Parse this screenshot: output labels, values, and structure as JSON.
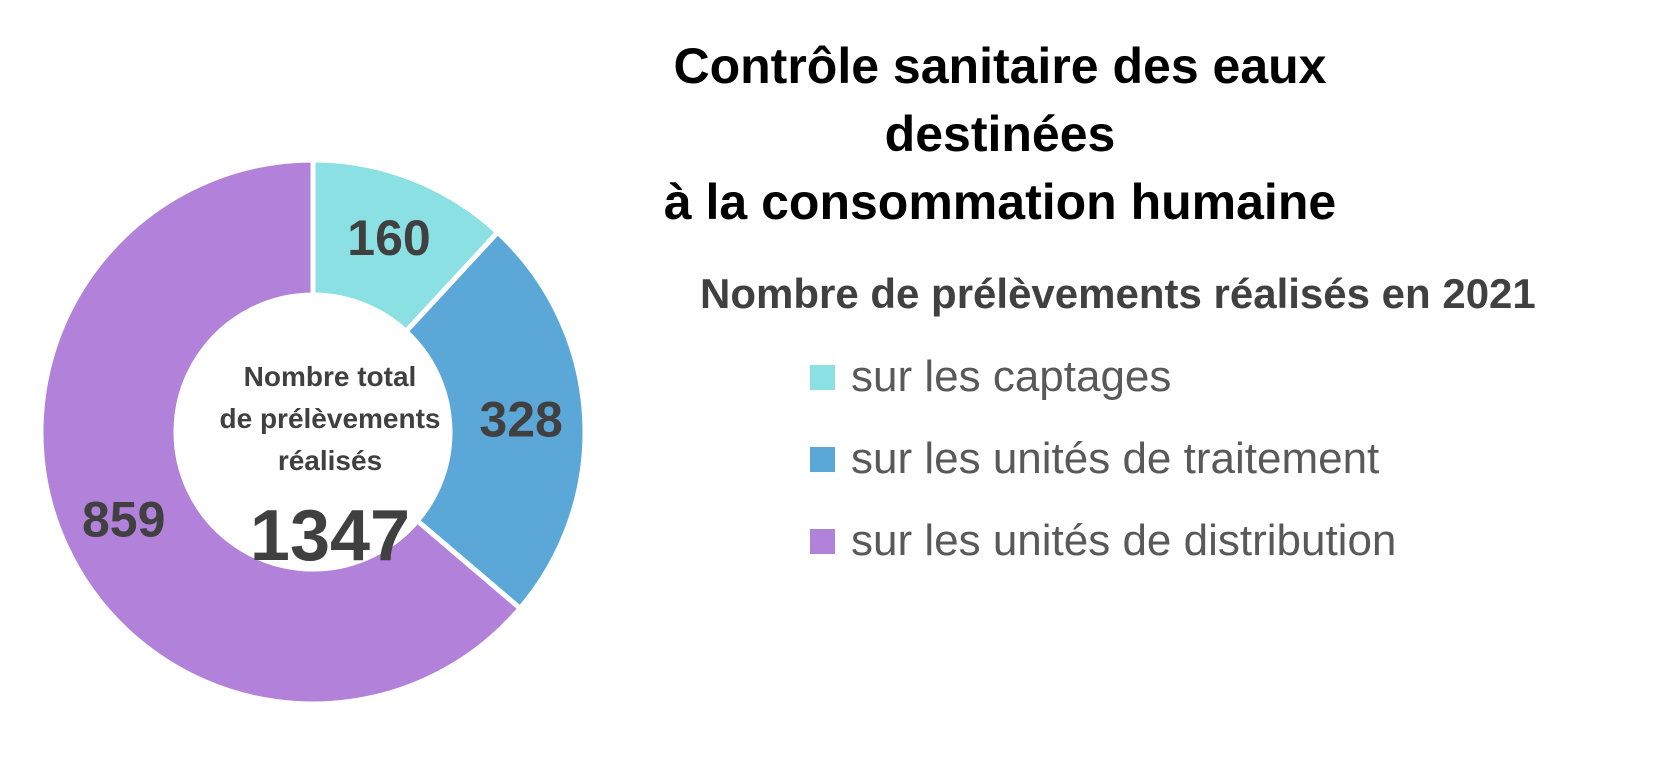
{
  "chart_data": {
    "type": "pie",
    "title_lines": [
      "Contrôle sanitaire des eaux destinées",
      "à la consommation humaine"
    ],
    "legend_title": "Nombre de prélèvements réalisés en 2021",
    "legend_placement": "right",
    "center": {
      "lines": [
        "Nombre total",
        "de prélèvements",
        "réalisés"
      ],
      "total": "1347"
    },
    "slices": [
      {
        "label": "sur les captages",
        "value": 160,
        "color": "#8ae0e2"
      },
      {
        "label": "sur les unités de traitement",
        "value": 328,
        "color": "#5ba8d8"
      },
      {
        "label": "sur les unités de distribution",
        "value": 859,
        "color": "#b281da"
      }
    ]
  }
}
